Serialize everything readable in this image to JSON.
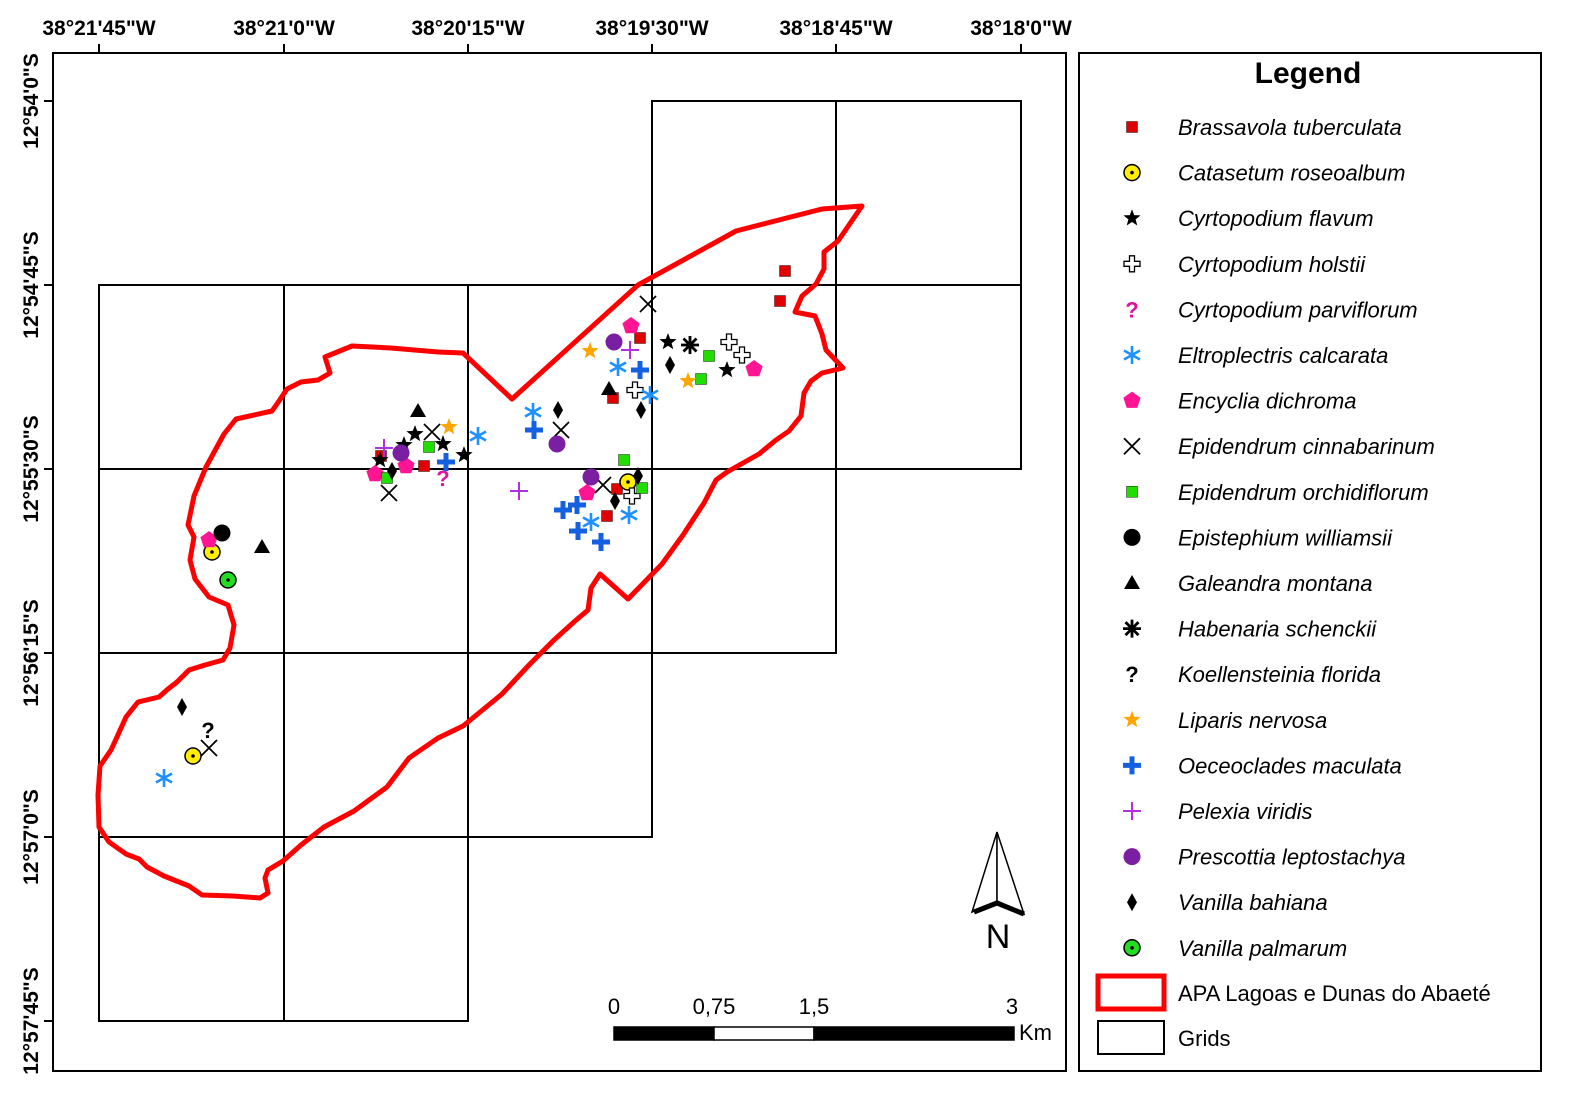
{
  "map": {
    "lon_labels": [
      "38°21'45\"W",
      "38°21'0\"W",
      "38°20'15\"W",
      "38°19'30\"W",
      "38°18'45\"W",
      "38°18'0\"W"
    ],
    "lat_labels": [
      "12°54'0\"S",
      "12°54'45\"S",
      "12°55'30\"S",
      "12°56'15\"S",
      "12°57'0\"S",
      "12°57'45\"S"
    ],
    "north_label": "N",
    "scale": {
      "ticks": [
        "0",
        "0,75",
        "1,5",
        "3"
      ],
      "unit": "Km"
    },
    "colors": {
      "boundary": "#ff0000",
      "grid": "#000000"
    }
  },
  "legend": {
    "title": "Legend",
    "items": [
      {
        "label": "Brassavola tuberculata",
        "symbol": "square",
        "color": "#e00000"
      },
      {
        "label": "Catasetum roseoalbum",
        "symbol": "dot-circle",
        "color": "#ffee00"
      },
      {
        "label": "Cyrtopodium flavum",
        "symbol": "star",
        "color": "#000000"
      },
      {
        "label": "Cyrtopodium holstii",
        "symbol": "open-cross",
        "color": "#ffffff"
      },
      {
        "label": "Cyrtopodium parviflorum",
        "symbol": "question",
        "color": "#e0139b"
      },
      {
        "label": "Eltroplectris calcarata",
        "symbol": "asterisk",
        "color": "#1e90ff"
      },
      {
        "label": "Encyclia dichroma",
        "symbol": "pentagon",
        "color": "#ff1493"
      },
      {
        "label": "Epidendrum cinnabarinum",
        "symbol": "x",
        "color": "#000000"
      },
      {
        "label": "Epidendrum orchidiflorum",
        "symbol": "square",
        "color": "#22dd00"
      },
      {
        "label": "Epistephium williamsii",
        "symbol": "circle",
        "color": "#000000"
      },
      {
        "label": "Galeandra montana",
        "symbol": "triangle",
        "color": "#000000"
      },
      {
        "label": "Habenaria schenckii",
        "symbol": "asterisk-bold",
        "color": "#000000"
      },
      {
        "label": "Koellensteinia florida",
        "symbol": "question",
        "color": "#000000"
      },
      {
        "label": "Liparis nervosa",
        "symbol": "star",
        "color": "#ffa500"
      },
      {
        "label": "Oeceoclades maculata",
        "symbol": "thick-plus",
        "color": "#1560e0"
      },
      {
        "label": "Pelexia viridis",
        "symbol": "thin-plus",
        "color": "#b030e0"
      },
      {
        "label": "Prescottia leptostachya",
        "symbol": "circle",
        "color": "#7b1fa2"
      },
      {
        "label": "Vanilla bahiana",
        "symbol": "diamond",
        "color": "#000000"
      },
      {
        "label": "Vanilla palmarum",
        "symbol": "dot-circle",
        "color": "#22dd22"
      }
    ],
    "boundary_label": "APA Lagoas e Dunas do Abaeté",
    "grid_label": "Grids"
  }
}
